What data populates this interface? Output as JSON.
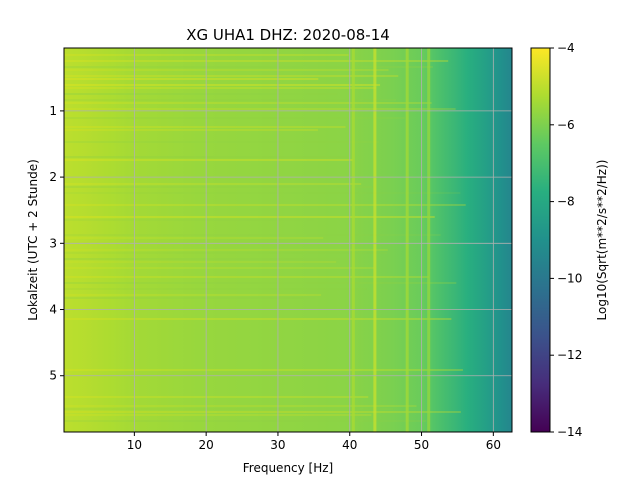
{
  "chart_data": {
    "type": "heatmap",
    "title": "XG UHA1  DHZ: 2020-08-14",
    "xlabel": "Frequency [Hz]",
    "ylabel": "Lokalzeit (UTC + 2 Stunde)",
    "xlim": [
      0.2,
      62.6
    ],
    "ylim": [
      5.85,
      0.05
    ],
    "x_ticks": [
      10,
      20,
      30,
      40,
      50,
      60
    ],
    "y_ticks": [
      1,
      2,
      3,
      4,
      5
    ],
    "grid": true,
    "colormap": "viridis",
    "colorbar": {
      "label": "Log10(Sqrt(m**2/s**2/Hz))",
      "vmin": -14,
      "vmax": -4,
      "ticks": [
        -4,
        -6,
        -8,
        -10,
        -12,
        -14
      ]
    },
    "value_profile": {
      "frequency_hz": [
        0,
        5,
        10,
        20,
        30,
        40,
        45,
        50,
        52,
        55,
        58,
        60,
        62.6
      ],
      "log10_amplitude": [
        -5.0,
        -5.2,
        -5.4,
        -5.6,
        -5.7,
        -5.8,
        -6.0,
        -6.3,
        -6.8,
        -7.4,
        -8.1,
        -8.7,
        -9.5
      ]
    },
    "features": [
      {
        "frequency_hz": 40.5,
        "log10_amplitude": -5.3
      },
      {
        "frequency_hz": 43.5,
        "log10_amplitude": -4.8
      },
      {
        "frequency_hz": 48.0,
        "log10_amplitude": -5.4
      },
      {
        "frequency_hz": 51.0,
        "log10_amplitude": -5.6
      }
    ]
  }
}
